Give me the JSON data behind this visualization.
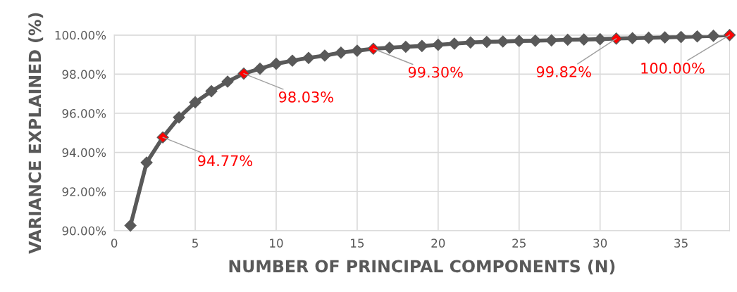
{
  "chart_data": {
    "type": "line",
    "xlabel": "NUMBER OF PRINCIPAL COMPONENTS (N)",
    "ylabel": "VARIANCE EXPLAINED (%)",
    "x": [
      1,
      2,
      3,
      4,
      5,
      6,
      7,
      8,
      9,
      10,
      11,
      12,
      13,
      14,
      15,
      16,
      17,
      18,
      19,
      20,
      21,
      22,
      23,
      24,
      25,
      26,
      27,
      28,
      29,
      30,
      31,
      32,
      33,
      34,
      35,
      36,
      37,
      38
    ],
    "values": [
      90.26,
      93.48,
      94.77,
      95.79,
      96.56,
      97.13,
      97.62,
      98.03,
      98.28,
      98.53,
      98.69,
      98.83,
      98.95,
      99.1,
      99.2,
      99.3,
      99.35,
      99.4,
      99.44,
      99.5,
      99.56,
      99.62,
      99.65,
      99.67,
      99.7,
      99.71,
      99.73,
      99.76,
      99.77,
      99.79,
      99.82,
      99.84,
      99.86,
      99.88,
      99.9,
      99.93,
      99.96,
      100.0
    ],
    "color": "#595959",
    "colors": [
      "#595959",
      "#595959",
      "#ff0000",
      "#595959",
      "#595959",
      "#595959",
      "#595959",
      "#ff0000",
      "#595959",
      "#595959",
      "#595959",
      "#595959",
      "#595959",
      "#595959",
      "#595959",
      "#ff0000",
      "#595959",
      "#595959",
      "#595959",
      "#595959",
      "#595959",
      "#595959",
      "#595959",
      "#595959",
      "#595959",
      "#595959",
      "#595959",
      "#595959",
      "#595959",
      "#595959",
      "#ff0000",
      "#595959",
      "#595959",
      "#595959",
      "#595959",
      "#595959",
      "#595959",
      "#ff0000"
    ],
    "value_labels": [
      null,
      null,
      "94.77%",
      null,
      null,
      null,
      null,
      "98.03%",
      null,
      null,
      null,
      null,
      null,
      null,
      null,
      "99.30%",
      null,
      null,
      null,
      null,
      null,
      null,
      null,
      null,
      null,
      null,
      null,
      null,
      null,
      null,
      "99.82%",
      null,
      null,
      null,
      null,
      null,
      null,
      "100.00%"
    ],
    "xlim": [
      0,
      38
    ],
    "xticks": [
      0,
      5,
      10,
      15,
      20,
      25,
      30,
      35
    ],
    "ylim": [
      90,
      100
    ],
    "yticks": [
      {
        "value": 90,
        "label": "90.00%"
      },
      {
        "value": 92,
        "label": "92.00%"
      },
      {
        "value": 94,
        "label": "94.00%"
      },
      {
        "value": 96,
        "label": "96.00%"
      },
      {
        "value": 98,
        "label": "98.00%"
      },
      {
        "value": 100,
        "label": "100.00%"
      }
    ],
    "grid": true,
    "marker": "diamond",
    "line_style": "solid"
  }
}
